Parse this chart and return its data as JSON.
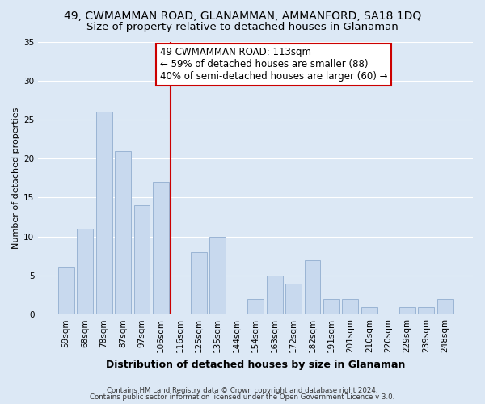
{
  "title": "49, CWMAMMAN ROAD, GLANAMMAN, AMMANFORD, SA18 1DQ",
  "subtitle": "Size of property relative to detached houses in Glanaman",
  "xlabel": "Distribution of detached houses by size in Glanaman",
  "ylabel": "Number of detached properties",
  "bar_labels": [
    "59sqm",
    "68sqm",
    "78sqm",
    "87sqm",
    "97sqm",
    "106sqm",
    "116sqm",
    "125sqm",
    "135sqm",
    "144sqm",
    "154sqm",
    "163sqm",
    "172sqm",
    "182sqm",
    "191sqm",
    "201sqm",
    "210sqm",
    "220sqm",
    "229sqm",
    "239sqm",
    "248sqm"
  ],
  "bar_values": [
    6,
    11,
    26,
    21,
    14,
    17,
    0,
    8,
    10,
    0,
    2,
    5,
    4,
    7,
    2,
    2,
    1,
    0,
    1,
    1,
    2
  ],
  "bar_color": "#c8d9ee",
  "bar_edge_color": "#9ab4d4",
  "vline_color": "#cc0000",
  "annotation_title": "49 CWMAMMAN ROAD: 113sqm",
  "annotation_line1": "← 59% of detached houses are smaller (88)",
  "annotation_line2": "40% of semi-detached houses are larger (60) →",
  "annotation_box_facecolor": "#ffffff",
  "annotation_box_edgecolor": "#cc0000",
  "ylim": [
    0,
    35
  ],
  "yticks": [
    0,
    5,
    10,
    15,
    20,
    25,
    30,
    35
  ],
  "background_color": "#dce8f5",
  "grid_color": "#ffffff",
  "footer1": "Contains HM Land Registry data © Crown copyright and database right 2024.",
  "footer2": "Contains public sector information licensed under the Open Government Licence v 3.0.",
  "title_fontsize": 10,
  "subtitle_fontsize": 9.5,
  "xlabel_fontsize": 9,
  "ylabel_fontsize": 8,
  "tick_fontsize": 7.5,
  "annotation_fontsize": 8.5
}
